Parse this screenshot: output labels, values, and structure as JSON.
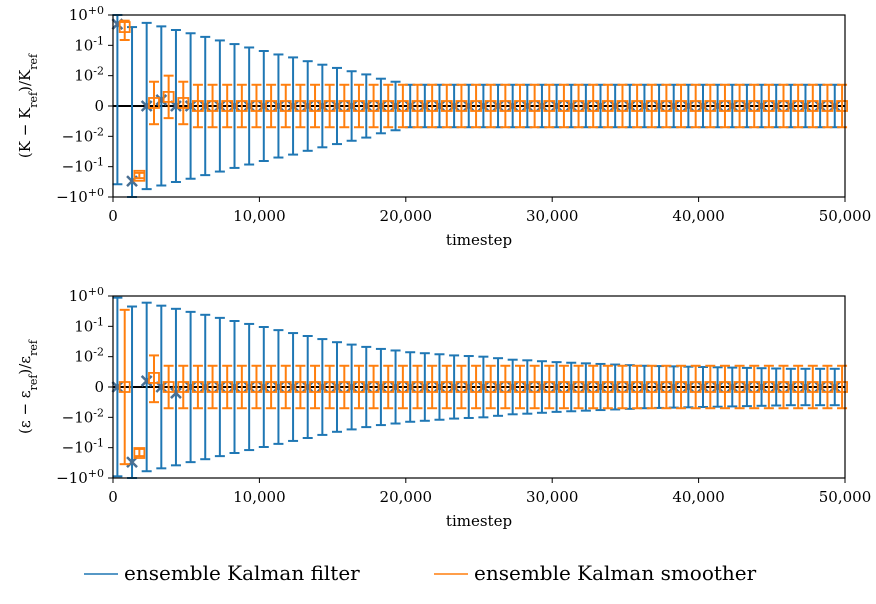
{
  "chart_data": [
    {
      "type": "errorbar",
      "xlabel": "timestep",
      "ylabel": "(K − K_ref)/K_ref",
      "xlim": [
        0,
        50000
      ],
      "yscale": "symlog",
      "xticks": [
        "0",
        "10,000",
        "20,000",
        "30,000",
        "40,000",
        "50,000"
      ],
      "yticks": [
        "10^{+0}",
        "10^{-1}",
        "10^{-2}",
        "0",
        "−10^{-2}",
        "−10^{-1}",
        "−10^{+0}"
      ],
      "series": [
        {
          "name": "ensemble Kalman filter",
          "marker": "x",
          "color": "#1f77b4",
          "x": [
            300,
            1300,
            2300,
            3300,
            4300,
            5300,
            6300,
            7300,
            8300,
            9300,
            10300,
            11300,
            12300,
            13300,
            14300,
            15300,
            16300,
            17300,
            18300,
            19300,
            20300,
            21300,
            22300,
            23300,
            24300,
            25300,
            26300,
            27300,
            28300,
            29300,
            30300,
            31300,
            32300,
            33300,
            34300,
            35300,
            36300,
            37300,
            38300,
            39300,
            40300,
            41300,
            42300,
            43300,
            44300,
            45300,
            46300,
            47300,
            48300,
            49300
          ],
          "y": [
            0.5,
            -0.3,
            0,
            0.002,
            0,
            0,
            0,
            0,
            0,
            0,
            0,
            0,
            0,
            0,
            0,
            0,
            0,
            0,
            0,
            0,
            0,
            0,
            0,
            0,
            0,
            0,
            0,
            0,
            0,
            0,
            0,
            0,
            0,
            0,
            0,
            0,
            0,
            0,
            0,
            0,
            0,
            0,
            0,
            0,
            0,
            0,
            0,
            0,
            0,
            0
          ],
          "err": [
            0.88,
            0.7,
            0.55,
            0.42,
            0.32,
            0.25,
            0.19,
            0.145,
            0.11,
            0.085,
            0.065,
            0.05,
            0.04,
            0.03,
            0.023,
            0.018,
            0.014,
            0.011,
            0.009,
            0.008,
            0.007,
            0.007,
            0.007,
            0.007,
            0.007,
            0.007,
            0.007,
            0.007,
            0.007,
            0.007,
            0.007,
            0.007,
            0.007,
            0.007,
            0.007,
            0.007,
            0.007,
            0.007,
            0.007,
            0.007,
            0.007,
            0.007,
            0.007,
            0.007,
            0.007,
            0.007,
            0.007,
            0.007,
            0.007,
            0.007
          ]
        },
        {
          "name": "ensemble Kalman smoother",
          "marker": "square",
          "color": "#ff7f0e",
          "x": [
            800,
            1800,
            2800,
            3800,
            4800,
            5800,
            6800,
            7800,
            8800,
            9800,
            10800,
            11800,
            12800,
            13800,
            14800,
            15800,
            16800,
            17800,
            18800,
            19800,
            20800,
            21800,
            22800,
            23800,
            24800,
            25800,
            26800,
            27800,
            28800,
            29800,
            30800,
            31800,
            32800,
            33800,
            34800,
            35800,
            36800,
            37800,
            38800,
            39800,
            40800,
            41800,
            42800,
            43800,
            44800,
            45800,
            46800,
            47800,
            48800,
            49800
          ],
          "y": [
            0.4,
            -0.2,
            0.001,
            0.003,
            0.001,
            0,
            0,
            0,
            0,
            0,
            0,
            0,
            0,
            0,
            0,
            0,
            0,
            0,
            0,
            0,
            0,
            0,
            0,
            0,
            0,
            0,
            0,
            0,
            0,
            0,
            0,
            0,
            0,
            0,
            0,
            0,
            0,
            0,
            0,
            0,
            0,
            0,
            0,
            0,
            0,
            0,
            0,
            0,
            0,
            0
          ],
          "err": [
            0.25,
            0.04,
            0.007,
            0.007,
            0.007,
            0.007,
            0.007,
            0.007,
            0.007,
            0.007,
            0.007,
            0.007,
            0.007,
            0.007,
            0.007,
            0.007,
            0.007,
            0.007,
            0.007,
            0.007,
            0.007,
            0.007,
            0.007,
            0.007,
            0.007,
            0.007,
            0.007,
            0.007,
            0.007,
            0.007,
            0.007,
            0.007,
            0.007,
            0.007,
            0.007,
            0.007,
            0.007,
            0.007,
            0.007,
            0.007,
            0.007,
            0.007,
            0.007,
            0.007,
            0.007,
            0.007,
            0.007,
            0.007,
            0.007,
            0.007
          ]
        }
      ],
      "reference_line": 0
    },
    {
      "type": "errorbar",
      "xlabel": "timestep",
      "ylabel": "(ε − ε_ref)/ε_ref",
      "xlim": [
        0,
        50000
      ],
      "yscale": "symlog",
      "xticks": [
        "0",
        "10,000",
        "20,000",
        "30,000",
        "40,000",
        "50,000"
      ],
      "yticks": [
        "10^{+0}",
        "10^{-1}",
        "10^{-2}",
        "0",
        "−10^{-2}",
        "−10^{-1}",
        "−10^{+0}"
      ],
      "series": [
        {
          "name": "ensemble Kalman filter",
          "marker": "x",
          "color": "#1f77b4",
          "x": [
            300,
            1300,
            2300,
            3300,
            4300,
            5300,
            6300,
            7300,
            8300,
            9300,
            10300,
            11300,
            12300,
            13300,
            14300,
            15300,
            16300,
            17300,
            18300,
            19300,
            20300,
            21300,
            22300,
            23300,
            24300,
            25300,
            26300,
            27300,
            28300,
            29300,
            30300,
            31300,
            32300,
            33300,
            34300,
            35300,
            36300,
            37300,
            38300,
            39300,
            40300,
            41300,
            42300,
            43300,
            44300,
            45300,
            46300,
            47300,
            48300,
            49300
          ],
          "y": [
            0,
            -0.3,
            0.002,
            0,
            -0.002,
            0,
            0,
            0,
            0,
            0,
            0,
            0,
            0,
            0,
            0,
            0,
            0,
            0,
            0,
            0,
            0,
            0,
            0,
            0,
            0,
            0,
            0,
            0,
            0,
            0,
            0,
            0,
            0,
            0,
            0,
            0,
            0,
            0,
            0,
            0,
            0,
            0,
            0,
            0,
            0,
            0,
            0,
            0,
            0,
            0
          ],
          "err": [
            0.88,
            0.75,
            0.6,
            0.48,
            0.38,
            0.3,
            0.24,
            0.19,
            0.15,
            0.12,
            0.095,
            0.075,
            0.06,
            0.048,
            0.038,
            0.03,
            0.025,
            0.021,
            0.018,
            0.016,
            0.014,
            0.013,
            0.012,
            0.011,
            0.0105,
            0.01,
            0.0095,
            0.009,
            0.0088,
            0.0085,
            0.0082,
            0.008,
            0.0078,
            0.0076,
            0.0074,
            0.0072,
            0.007,
            0.0069,
            0.0068,
            0.0067,
            0.0066,
            0.0065,
            0.0064,
            0.0063,
            0.0062,
            0.0061,
            0.006,
            0.006,
            0.006,
            0.006
          ]
        },
        {
          "name": "ensemble Kalman smoother",
          "marker": "square",
          "color": "#ff7f0e",
          "x": [
            800,
            1800,
            2800,
            3800,
            4800,
            5800,
            6800,
            7800,
            8800,
            9800,
            10800,
            11800,
            12800,
            13800,
            14800,
            15800,
            16800,
            17800,
            18800,
            19800,
            20800,
            21800,
            22800,
            23800,
            24800,
            25800,
            26800,
            27800,
            28800,
            29800,
            30800,
            31800,
            32800,
            33800,
            34800,
            35800,
            36800,
            37800,
            38800,
            39800,
            40800,
            41800,
            42800,
            43800,
            44800,
            45800,
            46800,
            47800,
            48800,
            49800
          ],
          "y": [
            0,
            -0.15,
            0.003,
            0,
            0,
            0,
            0,
            0,
            0,
            0,
            0,
            0,
            0,
            0,
            0,
            0,
            0,
            0,
            0,
            0,
            0,
            0,
            0,
            0,
            0,
            0,
            0,
            0,
            0,
            0,
            0,
            0,
            0,
            0,
            0,
            0,
            0,
            0,
            0,
            0,
            0,
            0,
            0,
            0,
            0,
            0,
            0,
            0,
            0,
            0
          ],
          "err": [
            0.35,
            0.04,
            0.008,
            0.007,
            0.007,
            0.007,
            0.007,
            0.007,
            0.007,
            0.007,
            0.007,
            0.007,
            0.007,
            0.007,
            0.007,
            0.007,
            0.007,
            0.007,
            0.007,
            0.007,
            0.007,
            0.007,
            0.007,
            0.007,
            0.007,
            0.007,
            0.007,
            0.007,
            0.007,
            0.007,
            0.007,
            0.007,
            0.007,
            0.007,
            0.007,
            0.007,
            0.007,
            0.007,
            0.007,
            0.007,
            0.007,
            0.007,
            0.007,
            0.007,
            0.007,
            0.007,
            0.007,
            0.007,
            0.007,
            0.007
          ]
        }
      ],
      "reference_line": 0
    }
  ],
  "legend": {
    "placement": "bottom-center",
    "items": [
      {
        "label": "ensemble Kalman filter",
        "color": "#1f77b4"
      },
      {
        "label": "ensemble Kalman smoother",
        "color": "#ff7f0e"
      }
    ]
  }
}
